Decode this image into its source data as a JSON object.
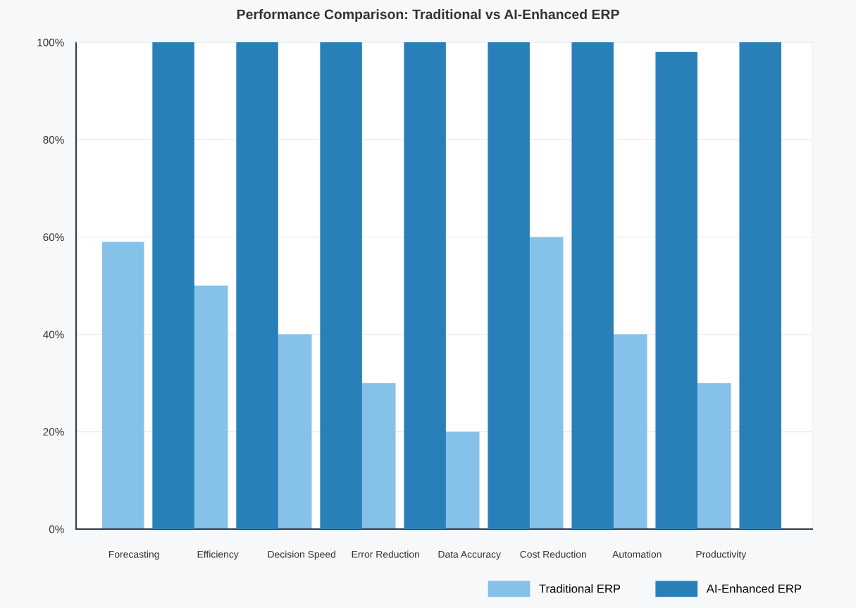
{
  "chart_data": {
    "type": "bar",
    "title": "Performance Comparison: Traditional vs AI-Enhanced ERP",
    "categories": [
      "Forecasting",
      "Efficiency",
      "Decision Speed",
      "Error Reduction",
      "Data Accuracy",
      "Cost Reduction",
      "Automation",
      "Productivity"
    ],
    "series": [
      {
        "name": "Traditional ERP",
        "color": "#85c1e9",
        "values": [
          59,
          50,
          40,
          30,
          20,
          60,
          40,
          30
        ]
      },
      {
        "name": "AI-Enhanced ERP",
        "color": "#2980b9",
        "values": [
          100,
          100,
          100,
          100,
          100,
          100,
          98,
          100
        ]
      }
    ],
    "ylim": [
      0,
      100
    ],
    "yticks": [
      {
        "value": 0,
        "label": "0%"
      },
      {
        "value": 20,
        "label": "20%"
      },
      {
        "value": 40,
        "label": "40%"
      },
      {
        "value": 60,
        "label": "60%"
      },
      {
        "value": 80,
        "label": "80%"
      },
      {
        "value": 100,
        "label": "100%"
      }
    ],
    "grid": "y",
    "legend": "bottom right"
  }
}
